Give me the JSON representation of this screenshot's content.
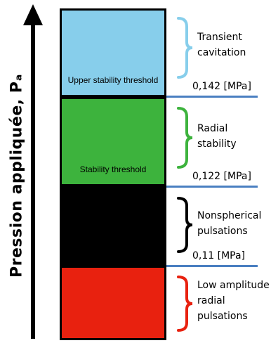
{
  "axis": {
    "label": "Pression appliquée, Pₐ"
  },
  "blocks": [
    {
      "color": "#87CEEB",
      "label": "Upper stability threshold"
    },
    {
      "color": "#3DB33D",
      "label": "Stability threshold"
    },
    {
      "color": "#000000",
      "label": ""
    },
    {
      "color": "#E8210F",
      "label": ""
    }
  ],
  "thresholds": [
    {
      "value": "0,142 [MPa]"
    },
    {
      "value": "0,122 [MPa]"
    },
    {
      "value": "0,11 [MPa]"
    }
  ],
  "regions": [
    {
      "line1": "Transient",
      "line2": "cavitation",
      "line3": "",
      "brace_color": "#87CEEB"
    },
    {
      "line1": "Radial",
      "line2": "stability",
      "line3": "",
      "brace_color": "#3DB33D"
    },
    {
      "line1": "Nonspherical",
      "line2": "pulsations",
      "line3": "",
      "brace_color": "#000000"
    },
    {
      "line1": "Low amplitude",
      "line2": "radial",
      "line3": "pulsations",
      "brace_color": "#E8210F"
    }
  ]
}
